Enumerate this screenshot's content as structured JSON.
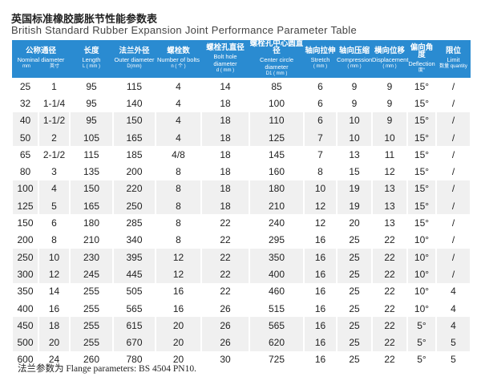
{
  "title_zh": "英国标准橡胶膨胀节性能参数表",
  "title_en": "British Standard Rubber Expansion Joint Performance Parameter Table",
  "header_colors": {
    "header_bg": "#2a8bd1",
    "stripe": "#f0f0f0"
  },
  "columns": [
    {
      "zh": "公称通径",
      "en": "Nominal diameter",
      "unit": "mm　　　　英寸",
      "span": 2
    },
    {
      "zh": "长度",
      "en": "Length",
      "unit": "L ( mm )"
    },
    {
      "zh": "法兰外径",
      "en": "Outer diameter",
      "unit": "D(mm)"
    },
    {
      "zh": "螺栓数",
      "en": "Number of bolts",
      "unit": "n ( 个 )"
    },
    {
      "zh": "螺栓孔直径",
      "en": "Bolt hole diameter",
      "unit": "d ( mm )"
    },
    {
      "zh": "螺栓孔中心圆直径",
      "en": "Center circle diameter",
      "unit": "D1 ( mm )"
    },
    {
      "zh": "轴向拉伸",
      "en": "Stretch",
      "unit": "( mm )"
    },
    {
      "zh": "轴向压缩",
      "en": "Compression",
      "unit": "( mm )"
    },
    {
      "zh": "横向位移",
      "en": "Displacement",
      "unit": "( mm )"
    },
    {
      "zh": "偏向角度",
      "en": "Deflection",
      "unit": "度°"
    },
    {
      "zh": "限位",
      "en": "Limit",
      "unit": "数量 quantity"
    }
  ],
  "rows": [
    [
      "25",
      "1",
      "95",
      "115",
      "4",
      "14",
      "85",
      "6",
      "9",
      "9",
      "15°",
      "/"
    ],
    [
      "32",
      "1-1/4",
      "95",
      "140",
      "4",
      "18",
      "100",
      "6",
      "9",
      "9",
      "15°",
      "/"
    ],
    [
      "40",
      "1-1/2",
      "95",
      "150",
      "4",
      "18",
      "110",
      "6",
      "10",
      "9",
      "15°",
      "/"
    ],
    [
      "50",
      "2",
      "105",
      "165",
      "4",
      "18",
      "125",
      "7",
      "10",
      "10",
      "15°",
      "/"
    ],
    [
      "65",
      "2-1/2",
      "115",
      "185",
      "4/8",
      "18",
      "145",
      "7",
      "13",
      "11",
      "15°",
      "/"
    ],
    [
      "80",
      "3",
      "135",
      "200",
      "8",
      "18",
      "160",
      "8",
      "15",
      "12",
      "15°",
      "/"
    ],
    [
      "100",
      "4",
      "150",
      "220",
      "8",
      "18",
      "180",
      "10",
      "19",
      "13",
      "15°",
      "/"
    ],
    [
      "125",
      "5",
      "165",
      "250",
      "8",
      "18",
      "210",
      "12",
      "19",
      "13",
      "15°",
      "/"
    ],
    [
      "150",
      "6",
      "180",
      "285",
      "8",
      "22",
      "240",
      "12",
      "20",
      "13",
      "15°",
      "/"
    ],
    [
      "200",
      "8",
      "210",
      "340",
      "8",
      "22",
      "295",
      "16",
      "25",
      "22",
      "10°",
      "/"
    ],
    [
      "250",
      "10",
      "230",
      "395",
      "12",
      "22",
      "350",
      "16",
      "25",
      "22",
      "10°",
      "/"
    ],
    [
      "300",
      "12",
      "245",
      "445",
      "12",
      "22",
      "400",
      "16",
      "25",
      "22",
      "10°",
      "/"
    ],
    [
      "350",
      "14",
      "255",
      "505",
      "16",
      "22",
      "460",
      "16",
      "25",
      "22",
      "10°",
      "4"
    ],
    [
      "400",
      "16",
      "255",
      "565",
      "16",
      "26",
      "515",
      "16",
      "25",
      "22",
      "10°",
      "4"
    ],
    [
      "450",
      "18",
      "255",
      "615",
      "20",
      "26",
      "565",
      "16",
      "25",
      "22",
      "5°",
      "4"
    ],
    [
      "500",
      "20",
      "255",
      "670",
      "20",
      "26",
      "620",
      "16",
      "25",
      "22",
      "5°",
      "5"
    ],
    [
      "600",
      "24",
      "260",
      "780",
      "20",
      "30",
      "725",
      "16",
      "25",
      "22",
      "5°",
      "5"
    ]
  ],
  "footer": "法兰参数为 Flange parameters: BS 4504 PN10."
}
